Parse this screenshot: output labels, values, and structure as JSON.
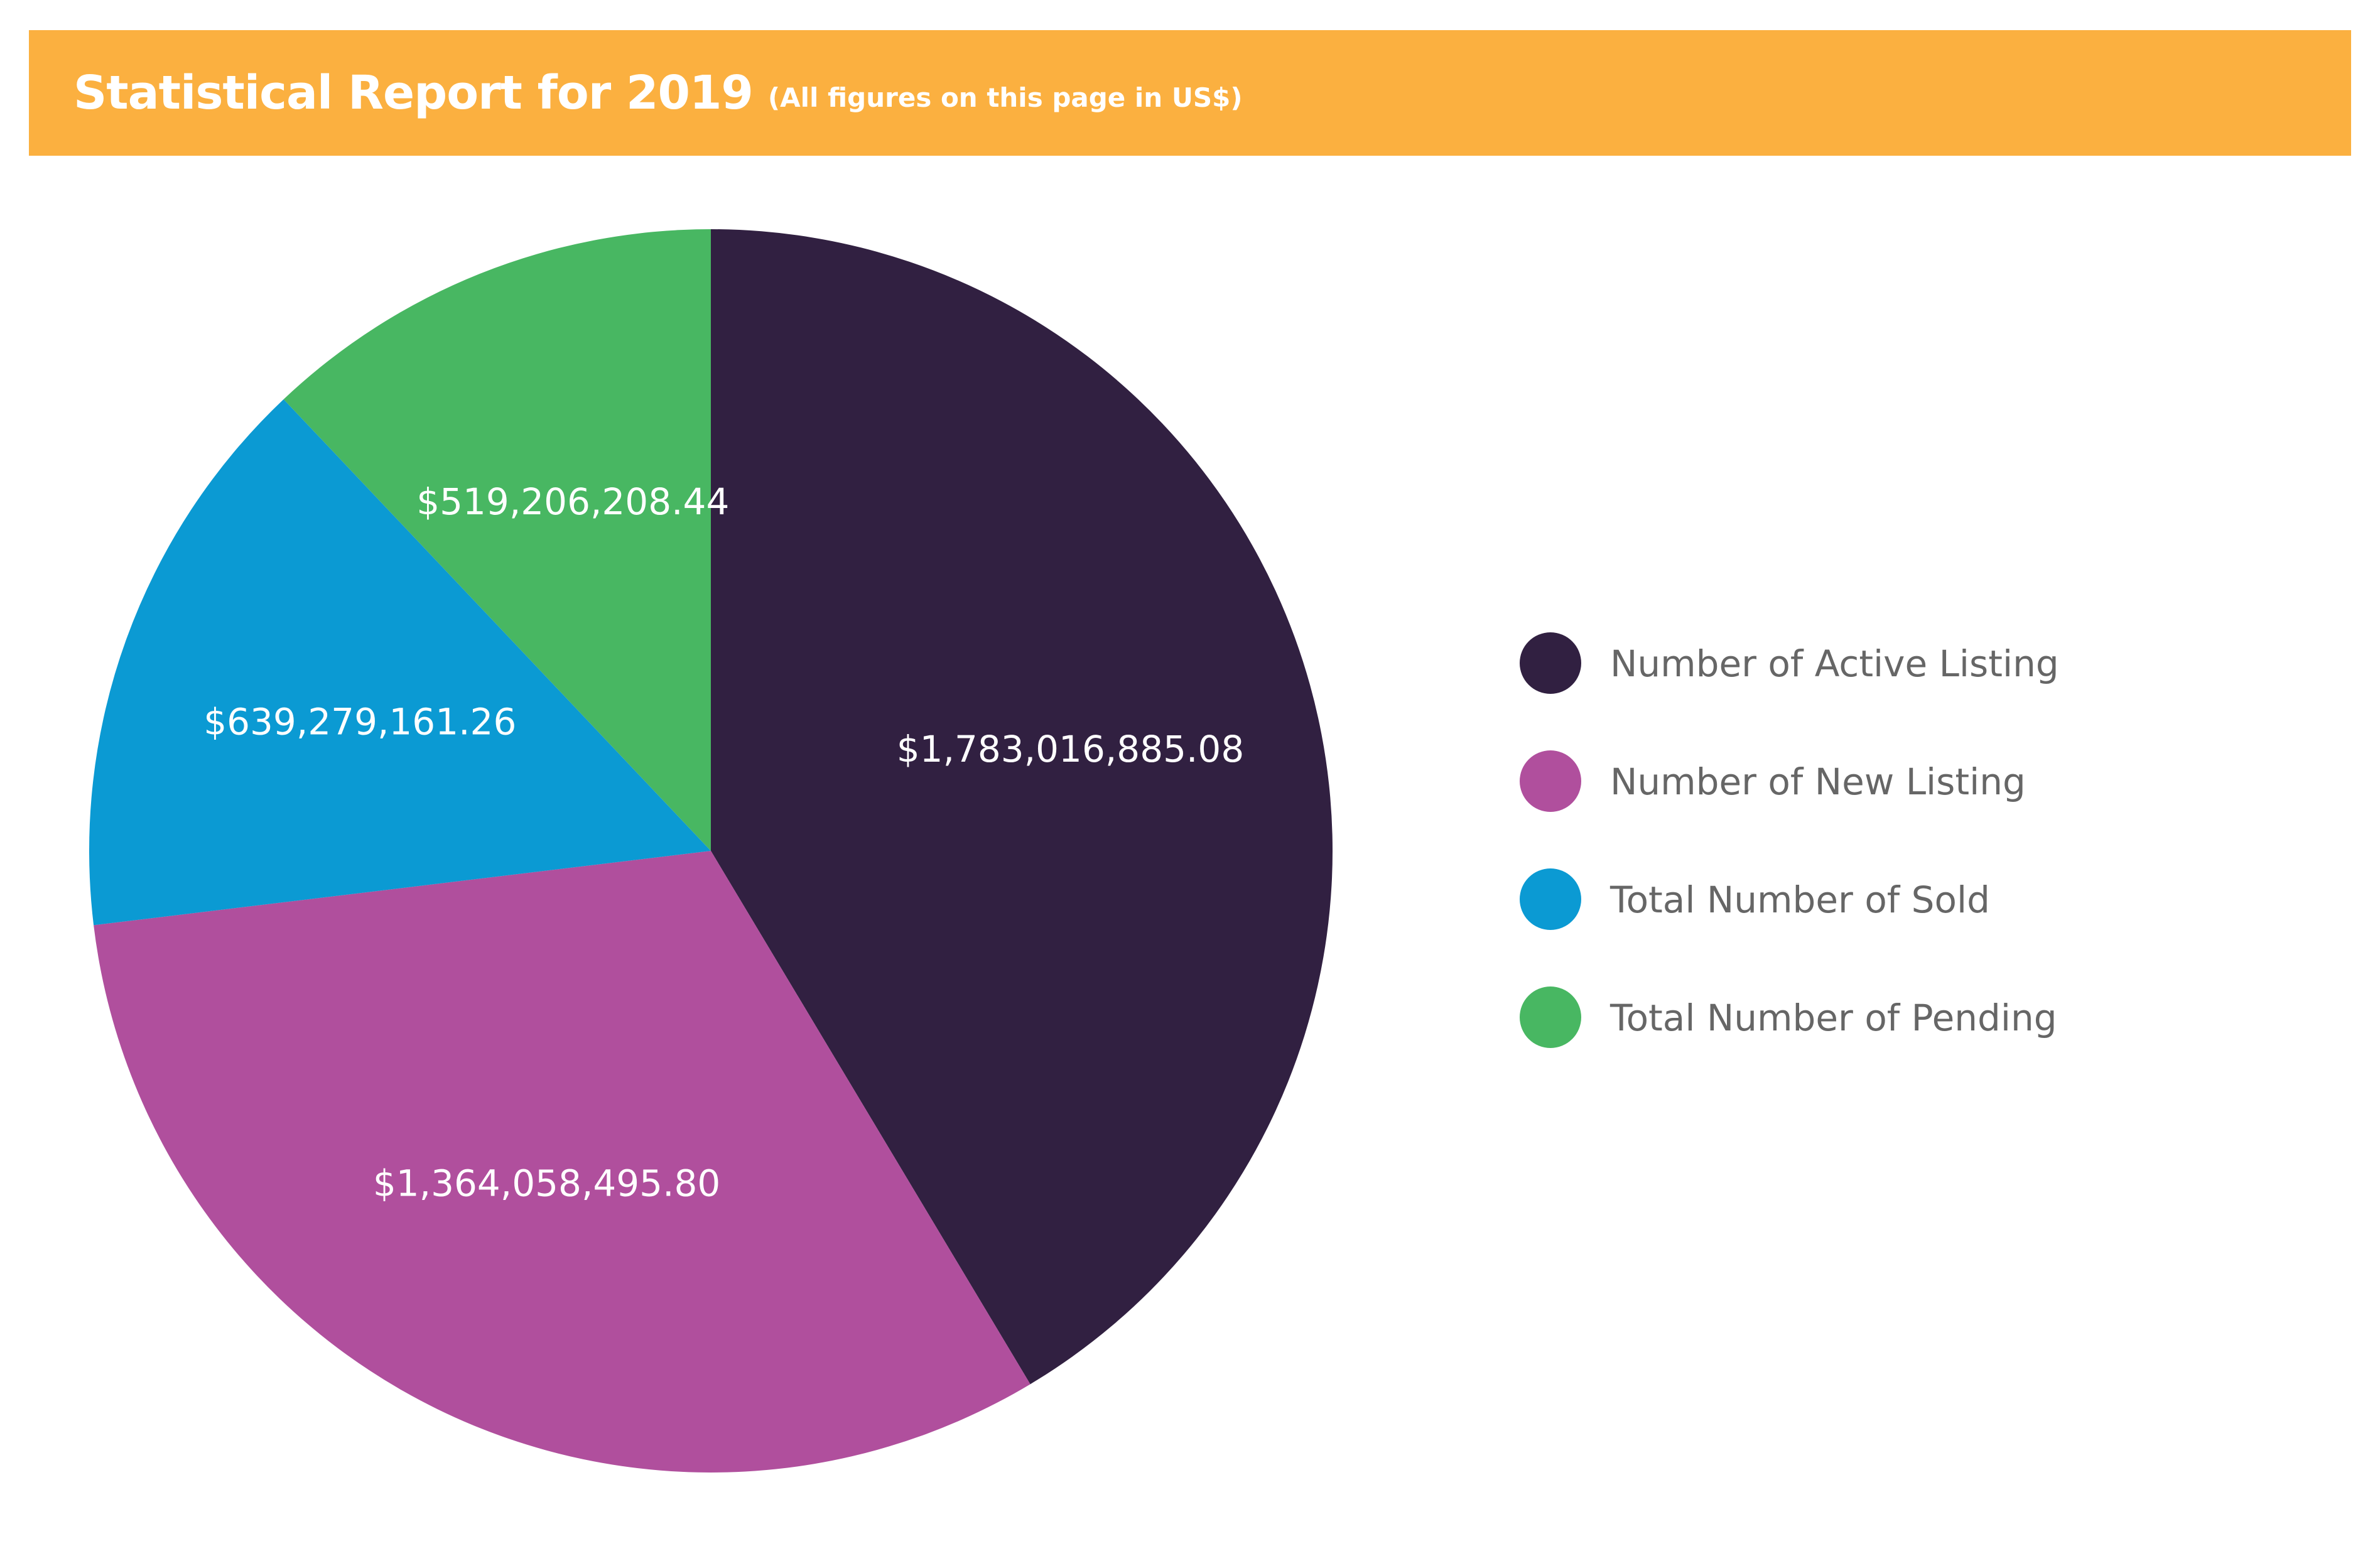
{
  "header": {
    "title": "Statistical Report for 2019",
    "subtitle": "(All figures on this page in US$)",
    "background_color": "#fbb040"
  },
  "chart_data": {
    "type": "pie",
    "title": "",
    "start_angle": "12 o'clock, clockwise",
    "categories": [
      "Number of Active Listing",
      "Number of New Listing",
      "Total Number of Sold",
      "Total Number of Pending"
    ],
    "values": [
      1783016885.08,
      1364058495.8,
      639279161.26,
      519206208.44
    ],
    "value_labels": [
      "$1,783,016,885.08",
      "$1,364,058,495.80",
      "$639,279,161.26",
      "$519,206,208.44"
    ],
    "colors": [
      "#312041",
      "#b04f9d",
      "#0b9ad3",
      "#48b762"
    ],
    "legend_position": "right"
  }
}
